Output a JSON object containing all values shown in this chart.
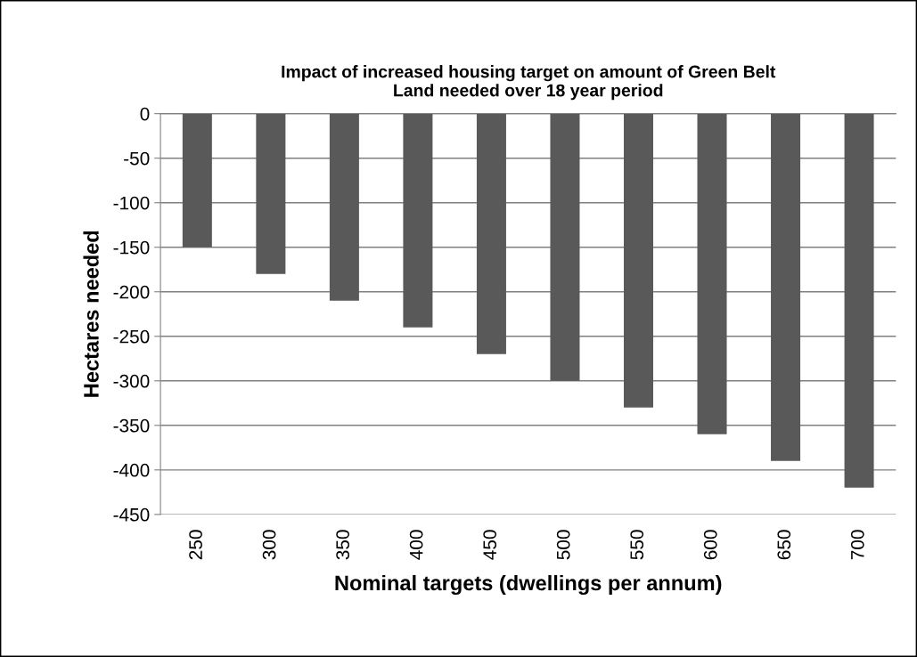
{
  "chart_data": {
    "type": "bar",
    "title": "Impact of increased housing target on amount of Green Belt\nLand needed over 18 year period",
    "xlabel": "Nominal targets (dwellings per annum)",
    "ylabel": "Hectares needed",
    "categories": [
      "250",
      "300",
      "350",
      "400",
      "450",
      "500",
      "550",
      "600",
      "650",
      "700"
    ],
    "values": [
      -150,
      -180,
      -210,
      -240,
      -270,
      -300,
      -330,
      -360,
      -390,
      -420
    ],
    "color": "#595959",
    "ylim": [
      -450,
      0
    ],
    "yticks": [
      0,
      -50,
      -100,
      -150,
      -200,
      -250,
      -300,
      -350,
      -400,
      -450
    ],
    "grid": "y"
  }
}
